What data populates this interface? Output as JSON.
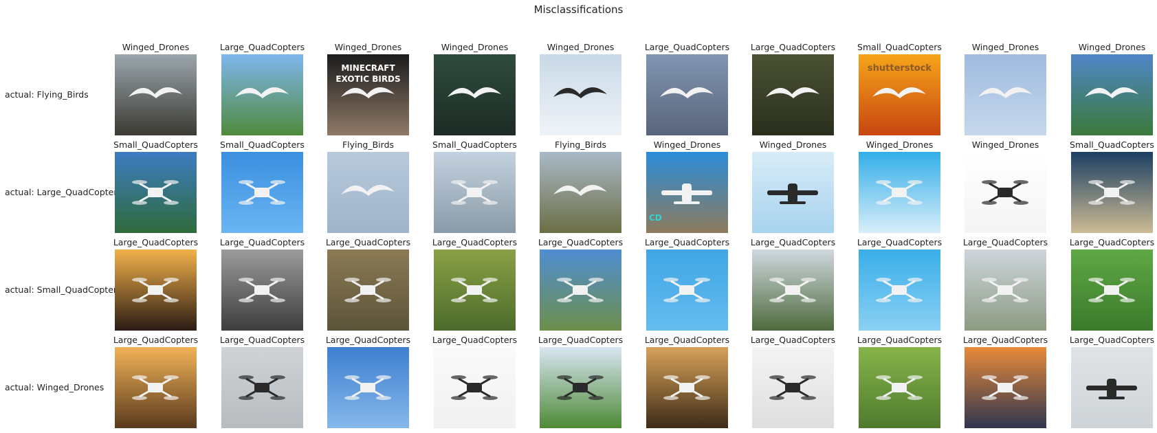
{
  "title": "Misclassifications",
  "rows": [
    {
      "actual_label": "actual: Flying_Birds",
      "predictions": [
        "Winged_Drones",
        "Large_QuadCopters",
        "Winged_Drones",
        "Winged_Drones",
        "Winged_Drones",
        "Large_QuadCopters",
        "Large_QuadCopters",
        "Small_QuadCopters",
        "Winged_Drones",
        "Winged_Drones"
      ],
      "images": [
        {
          "icon": "bird-icon",
          "bg": [
            "#9aa6ad",
            "#3c3a33"
          ]
        },
        {
          "icon": "bird-icon",
          "bg": [
            "#7fb6ef",
            "#4f8a3c"
          ]
        },
        {
          "icon": "bird-icon",
          "bg": [
            "#1c1c1c",
            "#8f7a68"
          ],
          "text": [
            "MINECRAFT",
            "EXOTIC BIRDS"
          ]
        },
        {
          "icon": "bird-icon",
          "bg": [
            "#2f4d3e",
            "#1d2b25"
          ]
        },
        {
          "icon": "bird-icon",
          "bg": [
            "#c9d9e8",
            "#eef3f7"
          ]
        },
        {
          "icon": "bird-icon",
          "bg": [
            "#8195b2",
            "#59657a"
          ]
        },
        {
          "icon": "bird-icon",
          "bg": [
            "#4b5233",
            "#2a2f1e"
          ]
        },
        {
          "icon": "bird-icon",
          "bg": [
            "#f6a418",
            "#c84612"
          ],
          "text": [
            "shutterstock"
          ]
        },
        {
          "icon": "bird-icon",
          "bg": [
            "#9fbbdf",
            "#c6d7ec"
          ]
        },
        {
          "icon": "bird-icon",
          "bg": [
            "#4f86c8",
            "#3b7a3a"
          ]
        }
      ]
    },
    {
      "actual_label": "actual: Large_QuadCopters",
      "predictions": [
        "Small_QuadCopters",
        "Small_QuadCopters",
        "Flying_Birds",
        "Small_QuadCopters",
        "Flying_Birds",
        "Winged_Drones",
        "Winged_Drones",
        "Winged_Drones",
        "Winged_Drones",
        "Small_QuadCopters"
      ],
      "images": [
        {
          "icon": "quadcopter-icon",
          "bg": [
            "#3d7cc3",
            "#2f6b3a"
          ]
        },
        {
          "icon": "quadcopter-icon",
          "bg": [
            "#3a8fe0",
            "#6ab5f2"
          ]
        },
        {
          "icon": "bird-icon",
          "bg": [
            "#b8c9dc",
            "#9fb4c9"
          ]
        },
        {
          "icon": "quadcopter-icon",
          "bg": [
            "#c3d2de",
            "#8a9aa7"
          ]
        },
        {
          "icon": "bird-icon",
          "bg": [
            "#a9b9c8",
            "#6b6e44"
          ]
        },
        {
          "icon": "winged-drone-icon",
          "bg": [
            "#2a8cd9",
            "#8d7b5d"
          ],
          "text": [
            "CD"
          ]
        },
        {
          "icon": "winged-drone-icon",
          "bg": [
            "#d8ecf8",
            "#a7d2ee"
          ]
        },
        {
          "icon": "quadcopter-icon",
          "bg": [
            "#33aee9",
            "#d8eef9"
          ]
        },
        {
          "icon": "quadcopter-icon",
          "bg": [
            "#ffffff",
            "#f4f4f4"
          ]
        },
        {
          "icon": "quadcopter-icon",
          "bg": [
            "#1c3f63",
            "#cdbb93"
          ]
        }
      ]
    },
    {
      "actual_label": "actual: Small_QuadCopters",
      "predictions": [
        "Large_QuadCopters",
        "Large_QuadCopters",
        "Large_QuadCopters",
        "Large_QuadCopters",
        "Large_QuadCopters",
        "Large_QuadCopters",
        "Large_QuadCopters",
        "Large_QuadCopters",
        "Large_QuadCopters",
        "Large_QuadCopters"
      ],
      "images": [
        {
          "icon": "quadcopter-icon",
          "bg": [
            "#f3b24a",
            "#2b1b14"
          ]
        },
        {
          "icon": "quadcopter-icon",
          "bg": [
            "#9b9b9b",
            "#3d3d3d"
          ]
        },
        {
          "icon": "quadcopter-icon",
          "bg": [
            "#8b7a55",
            "#5c5439"
          ]
        },
        {
          "icon": "quadcopter-icon",
          "bg": [
            "#8aa145",
            "#4c6b2c"
          ]
        },
        {
          "icon": "quadcopter-icon",
          "bg": [
            "#4f8ed3",
            "#6d8f4a"
          ]
        },
        {
          "icon": "quadcopter-icon",
          "bg": [
            "#40a6e4",
            "#64bcef"
          ]
        },
        {
          "icon": "quadcopter-icon",
          "bg": [
            "#cfd9e0",
            "#4f6a3c"
          ]
        },
        {
          "icon": "quadcopter-icon",
          "bg": [
            "#3aaee8",
            "#8ad0f4"
          ]
        },
        {
          "icon": "quadcopter-icon",
          "bg": [
            "#cdd5dc",
            "#8c9a82"
          ]
        },
        {
          "icon": "quadcopter-icon",
          "bg": [
            "#5fa845",
            "#3b7a2b"
          ]
        }
      ]
    },
    {
      "actual_label": "actual: Winged_Drones",
      "predictions": [
        "Large_QuadCopters",
        "Large_QuadCopters",
        "Large_QuadCopters",
        "Large_QuadCopters",
        "Large_QuadCopters",
        "Large_QuadCopters",
        "Large_QuadCopters",
        "Large_QuadCopters",
        "Large_QuadCopters",
        "Large_QuadCopters"
      ],
      "images": [
        {
          "icon": "quadcopter-icon",
          "bg": [
            "#f2b357",
            "#5a3a1d"
          ]
        },
        {
          "icon": "quadcopter-icon",
          "bg": [
            "#cfd3d6",
            "#b7bcc0"
          ]
        },
        {
          "icon": "quadcopter-icon",
          "bg": [
            "#3e7fd1",
            "#86b8ea"
          ]
        },
        {
          "icon": "quadcopter-icon",
          "bg": [
            "#fafafa",
            "#f1f1f1"
          ]
        },
        {
          "icon": "quadcopter-icon",
          "bg": [
            "#d9e6f3",
            "#4d8a35"
          ]
        },
        {
          "icon": "quadcopter-icon",
          "bg": [
            "#d7a15a",
            "#3e2c17"
          ]
        },
        {
          "icon": "quadcopter-icon",
          "bg": [
            "#f4f4f4",
            "#dedede"
          ]
        },
        {
          "icon": "quadcopter-icon",
          "bg": [
            "#86b44a",
            "#4f7a2d"
          ]
        },
        {
          "icon": "quadcopter-icon",
          "bg": [
            "#e88a3a",
            "#30354f"
          ]
        },
        {
          "icon": "winged-drone-icon",
          "bg": [
            "#dfe3e6",
            "#cfd4d8"
          ]
        }
      ]
    }
  ]
}
